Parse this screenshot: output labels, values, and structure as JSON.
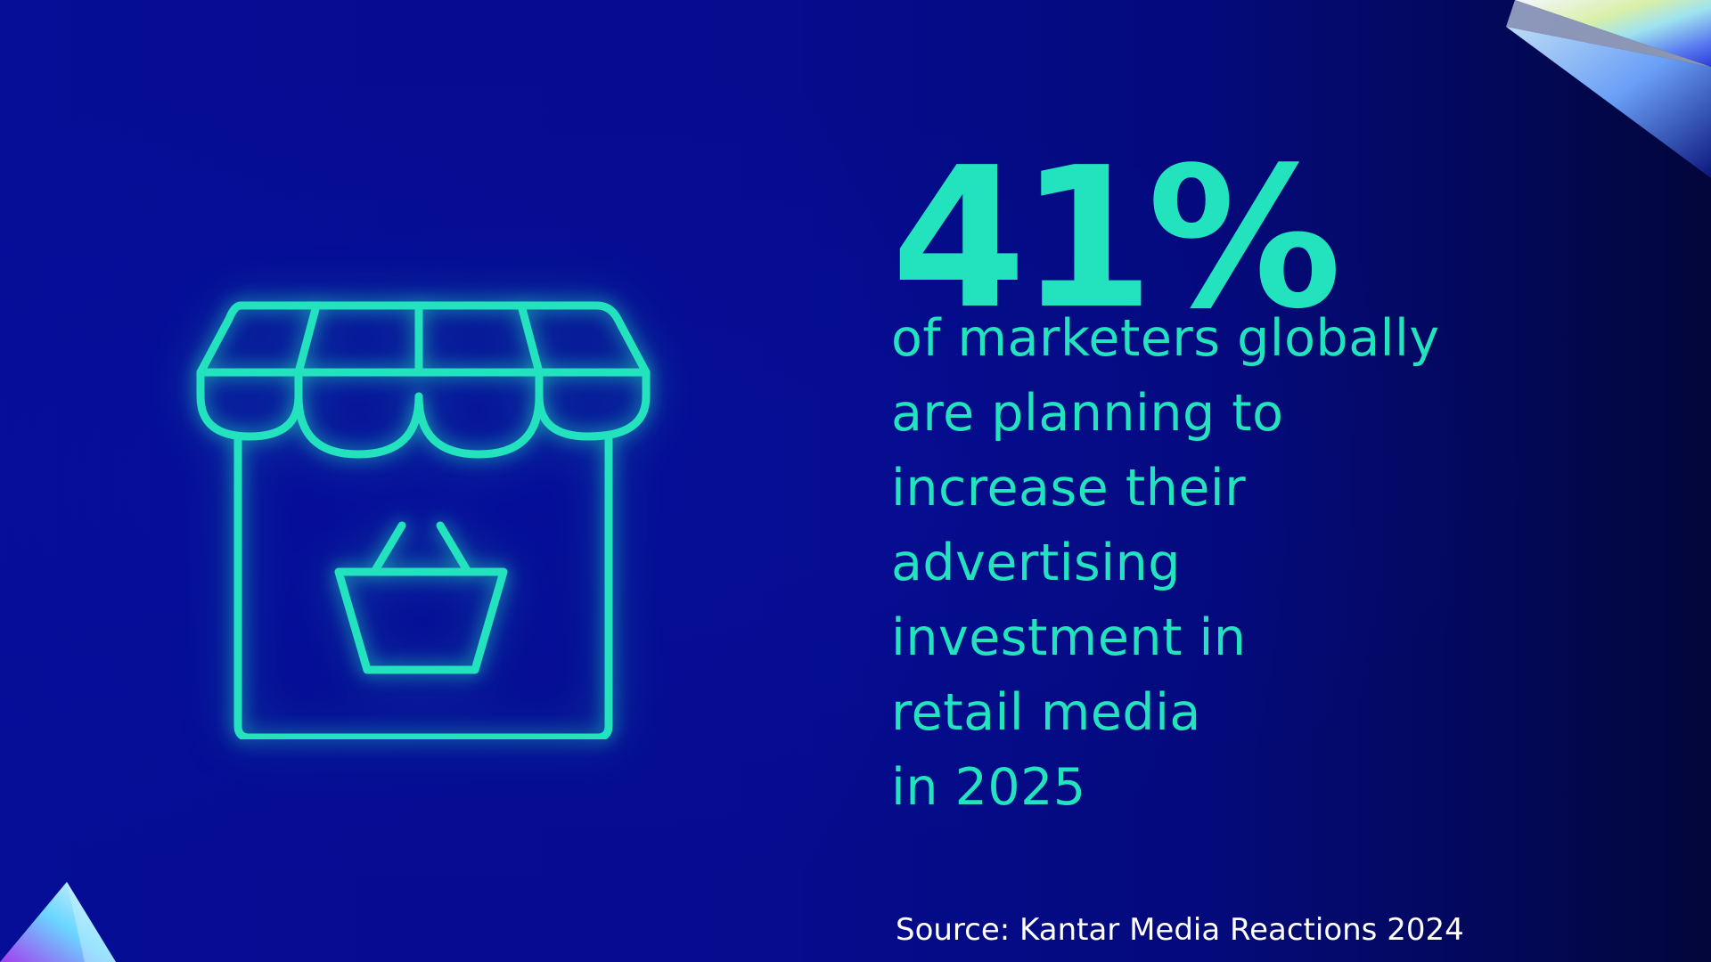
{
  "stat": {
    "value": "41%",
    "description_lines": [
      "of marketers globally",
      "are planning to",
      "increase their",
      "advertising",
      "investment in",
      "retail media",
      "in 2025"
    ]
  },
  "source": "Source: Kantar Media Reactions 2024",
  "icons": {
    "store": "storefront-with-basket-icon",
    "decoration_top": "prism-icon",
    "decoration_bottom": "prism-icon"
  },
  "colors": {
    "background": "#050c8e",
    "accent": "#22e3bd",
    "source_text": "#ffffff"
  }
}
